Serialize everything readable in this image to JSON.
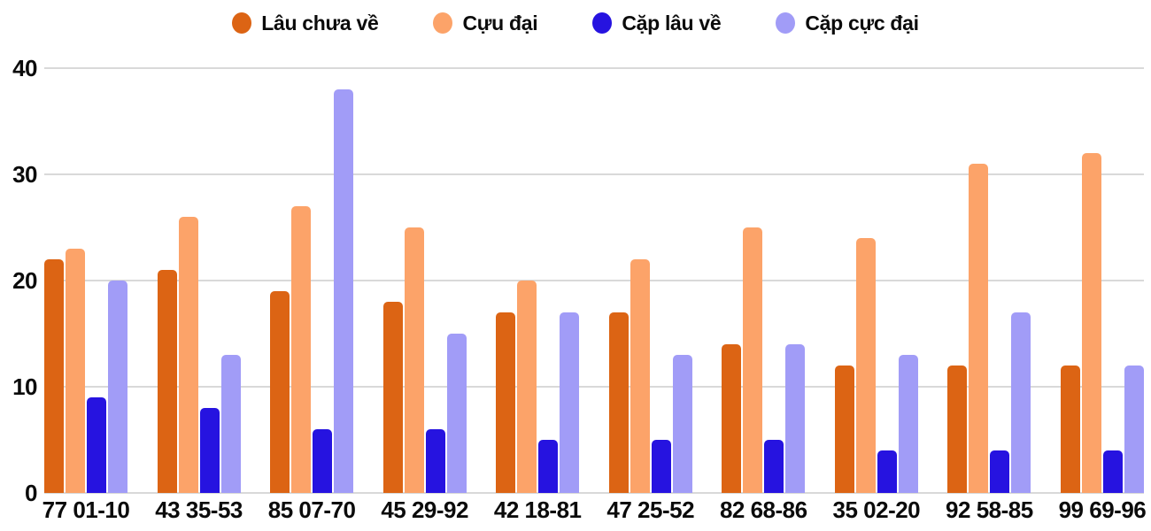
{
  "colors": {
    "background": "#ffffff",
    "grid": "#d9d9d9",
    "text": "#0b0b0b"
  },
  "chart_data": {
    "type": "bar",
    "title": "",
    "xlabel": "",
    "ylabel": "",
    "categories": [
      "77 01-10",
      "43 35-53",
      "85 07-70",
      "45 29-92",
      "42 18-81",
      "47 25-52",
      "82 68-86",
      "35 02-20",
      "92 58-85",
      "99 69-96"
    ],
    "series": [
      {
        "name": "Lâu chưa về",
        "color": "#dc6414",
        "values": [
          22,
          21,
          19,
          18,
          17,
          17,
          14,
          12,
          12,
          12
        ]
      },
      {
        "name": "Cựu đại",
        "color": "#fca369",
        "values": [
          23,
          26,
          27,
          25,
          20,
          22,
          25,
          24,
          31,
          32
        ]
      },
      {
        "name": "Cặp lâu về",
        "color": "#2613e0",
        "values": [
          9,
          8,
          6,
          6,
          5,
          5,
          5,
          4,
          4,
          4
        ]
      },
      {
        "name": "Cặp cực đại",
        "color": "#a19cf7",
        "values": [
          20,
          13,
          38,
          15,
          17,
          13,
          14,
          13,
          17,
          12
        ]
      }
    ],
    "ylim": [
      0,
      40
    ],
    "yticks": [
      0,
      10,
      20,
      30,
      40
    ],
    "grid": true,
    "legend_position": "top"
  }
}
